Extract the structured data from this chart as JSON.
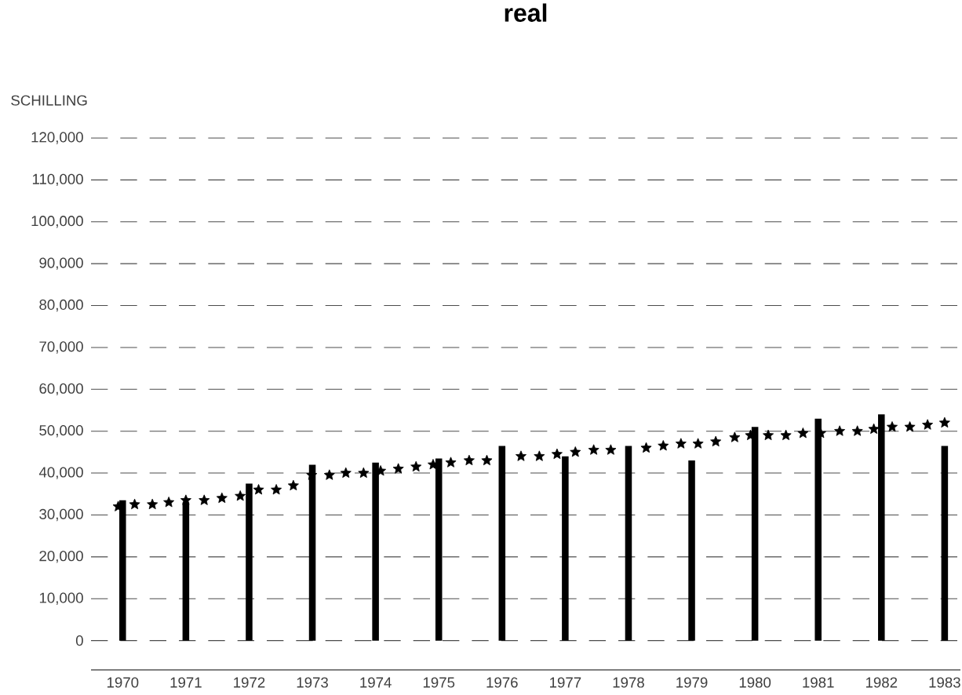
{
  "chart_data": {
    "type": "bar",
    "title": "real",
    "ylabel": "SCHILLING",
    "x": [
      1970,
      1971,
      1972,
      1973,
      1974,
      1975,
      1976,
      1977,
      1978,
      1979,
      1980,
      1981,
      1982,
      1983
    ],
    "xlim": [
      1969.5,
      1983.25
    ],
    "xticks": [
      1970,
      1971,
      1972,
      1973,
      1974,
      1975,
      1976,
      1977,
      1978,
      1979,
      1980,
      1981,
      1982,
      1983
    ],
    "ylim": [
      -7000,
      120000
    ],
    "yticks": [
      0,
      {
        "value": 10000,
        "label": "10,000"
      },
      {
        "value": 20000,
        "label": "20,000"
      },
      {
        "value": 30000,
        "label": "30,000"
      },
      {
        "value": 40000,
        "label": "40,000"
      },
      {
        "value": 50000,
        "label": "50,000"
      },
      {
        "value": 60000,
        "label": "60,000"
      },
      {
        "value": 70000,
        "label": "70,000"
      },
      {
        "value": 80000,
        "label": "80,000"
      },
      {
        "value": 90000,
        "label": "90,000"
      },
      {
        "value": 100000,
        "label": "100,000"
      },
      {
        "value": 110000,
        "label": "110,000"
      },
      {
        "value": 120000,
        "label": "120,000"
      }
    ],
    "grid": "y",
    "series": [
      {
        "color": "#000000",
        "values": [
          33500,
          33000,
          37500,
          42000,
          42500,
          43500,
          46500,
          44000,
          46500,
          43000,
          51000,
          53000,
          54000,
          46500
        ]
      },
      {
        "type": "scatter",
        "marker": "star",
        "color": "#000000",
        "x": [
          1969.93,
          1970.19,
          1970.47,
          1970.73,
          1971.0,
          1971.29,
          1971.57,
          1971.86,
          1972.15,
          1972.43,
          1972.7,
          1972.99,
          1973.27,
          1973.53,
          1973.81,
          1974.08,
          1974.36,
          1974.64,
          1974.91,
          1975.19,
          1975.48,
          1975.76,
          1976.3,
          1976.59,
          1976.87,
          1977.16,
          1977.45,
          1977.72,
          1978.28,
          1978.55,
          1978.83,
          1979.1,
          1979.38,
          1979.68,
          1979.93,
          1980.21,
          1980.49,
          1980.76,
          1981.04,
          1981.34,
          1981.62,
          1981.88,
          1982.17,
          1982.45,
          1982.73,
          1983.0
        ],
        "values": [
          32000,
          32500,
          32500,
          33000,
          33500,
          33500,
          34000,
          34500,
          36000,
          36000,
          37000,
          39500,
          39500,
          40000,
          40000,
          40500,
          41000,
          41500,
          42000,
          42500,
          43000,
          43000,
          44000,
          44000,
          44500,
          45000,
          45500,
          45500,
          46000,
          46500,
          47000,
          47000,
          47500,
          48500,
          49000,
          49000,
          49000,
          49500,
          49500,
          50000,
          50000,
          50500,
          51000,
          51000,
          51500,
          52000
        ]
      }
    ]
  }
}
